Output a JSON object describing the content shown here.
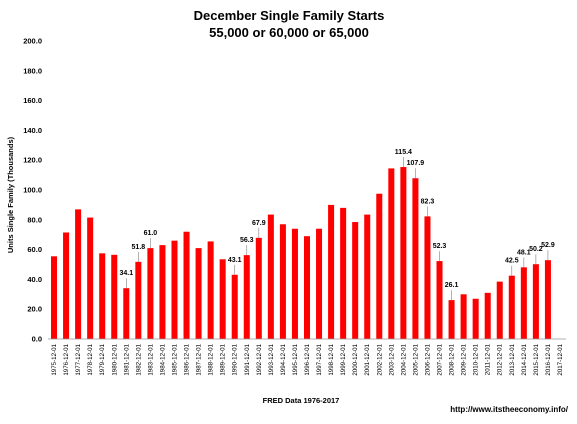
{
  "chart_data": {
    "type": "bar",
    "title": "December Single Family Starts",
    "subtitle": "55,000 or 60,000 or 65,000",
    "xlabel": "FRED  Data 1976-2017",
    "ylabel": "Units Single Family (Thousands)",
    "ylim": [
      0,
      200
    ],
    "yticks": [
      "0.0",
      "20.0",
      "40.0",
      "60.0",
      "80.0",
      "100.0",
      "120.0",
      "140.0",
      "160.0",
      "180.0",
      "200.0"
    ],
    "grid": false,
    "legend": "none",
    "bar_color": "#ff0000",
    "footer": "http://www.itstheeconomy.info/",
    "categories": [
      "1975-12-01",
      "1976-12-01",
      "1977-12-01",
      "1978-12-01",
      "1979-12-01",
      "1980-12-01",
      "1981-12-01",
      "1982-12-01",
      "1983-12-01",
      "1984-12-01",
      "1985-12-01",
      "1986-12-01",
      "1987-12-01",
      "1988-12-01",
      "1989-12-01",
      "1990-12-01",
      "1991-12-01",
      "1992-12-01",
      "1993-12-01",
      "1994-12-01",
      "1995-12-01",
      "1996-12-01",
      "1997-12-01",
      "1998-12-01",
      "1999-12-01",
      "2000-12-01",
      "2001-12-01",
      "2002-12-01",
      "2003-12-01",
      "2004-12-01",
      "2005-12-01",
      "2006-12-01",
      "2007-12-01",
      "2008-12-01",
      "2009-12-01",
      "2010-12-01",
      "2011-12-01",
      "2012-12-01",
      "2013-12-01",
      "2014-12-01",
      "2015-12-01",
      "2016-12-01",
      "2017-12-01"
    ],
    "values": [
      55.5,
      71.5,
      87.0,
      81.5,
      57.5,
      56.5,
      34.1,
      51.8,
      61.0,
      63.0,
      66.0,
      72.0,
      61.0,
      65.5,
      53.5,
      43.1,
      56.3,
      67.9,
      83.5,
      77.0,
      74.0,
      69.0,
      74.0,
      90.0,
      88.0,
      78.5,
      83.5,
      97.5,
      114.5,
      115.4,
      107.9,
      82.3,
      52.3,
      26.1,
      30.0,
      27.0,
      31.0,
      38.5,
      42.5,
      48.1,
      50.2,
      52.9,
      null
    ],
    "data_labels": [
      {
        "category": "1981-12-01",
        "text": "34.1"
      },
      {
        "category": "1982-12-01",
        "text": "51.8"
      },
      {
        "category": "1983-12-01",
        "text": "61.0"
      },
      {
        "category": "1990-12-01",
        "text": "43.1"
      },
      {
        "category": "1991-12-01",
        "text": "56.3"
      },
      {
        "category": "1992-12-01",
        "text": "67.9"
      },
      {
        "category": "2004-12-01",
        "text": "115.4"
      },
      {
        "category": "2005-12-01",
        "text": "107.9"
      },
      {
        "category": "2006-12-01",
        "text": "82.3"
      },
      {
        "category": "2007-12-01",
        "text": "52.3"
      },
      {
        "category": "2008-12-01",
        "text": "26.1"
      },
      {
        "category": "2013-12-01",
        "text": "42.5"
      },
      {
        "category": "2014-12-01",
        "text": "48.1"
      },
      {
        "category": "2015-12-01",
        "text": "50.2"
      },
      {
        "category": "2016-12-01",
        "text": "52.9"
      }
    ]
  }
}
